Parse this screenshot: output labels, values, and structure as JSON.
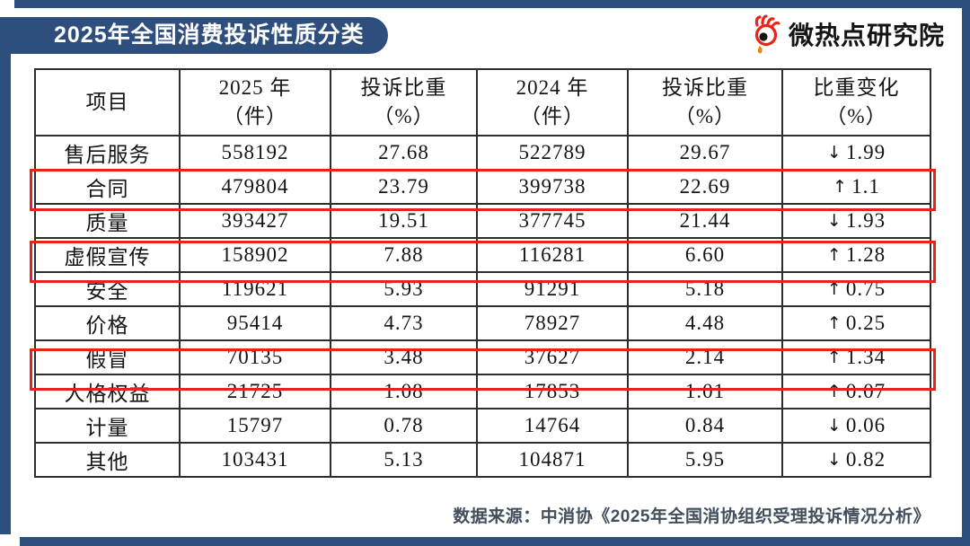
{
  "banner": {
    "title": "2025年全国消费投诉性质分类"
  },
  "logo": {
    "text": "微热点研究院",
    "icon": "weibo-eye-icon"
  },
  "colors": {
    "frame_blue": "#2e4f7d",
    "highlight_red": "#e8231a",
    "table_border": "#2d2d2d",
    "logo_red": "#e8231a",
    "logo_orange": "#f08300"
  },
  "footer": {
    "source": "数据来源：中消协《2025年全国消协组织受理投诉情况分析》"
  },
  "chart_data": {
    "type": "table",
    "title": "2025年全国消费投诉性质分类",
    "header": [
      {
        "l1": "项目",
        "l2": ""
      },
      {
        "l1": "2025 年",
        "l2": "（件）"
      },
      {
        "l1": "投诉比重",
        "l2": "（%）"
      },
      {
        "l1": "2024 年",
        "l2": "（件）"
      },
      {
        "l1": "投诉比重",
        "l2": "（%）"
      },
      {
        "l1": "比重变化",
        "l2": "（%）"
      }
    ],
    "rows": [
      {
        "item": "售后服务",
        "count_2025": "558192",
        "share_2025": "27.68",
        "count_2024": "522789",
        "share_2024": "29.67",
        "change_dir": "down",
        "change_value": "1.99",
        "highlight": false
      },
      {
        "item": "合同",
        "count_2025": "479804",
        "share_2025": "23.79",
        "count_2024": "399738",
        "share_2024": "22.69",
        "change_dir": "up",
        "change_value": "1.1",
        "highlight": true
      },
      {
        "item": "质量",
        "count_2025": "393427",
        "share_2025": "19.51",
        "count_2024": "377745",
        "share_2024": "21.44",
        "change_dir": "down",
        "change_value": "1.93",
        "highlight": false
      },
      {
        "item": "虚假宣传",
        "count_2025": "158902",
        "share_2025": "7.88",
        "count_2024": "116281",
        "share_2024": "6.60",
        "change_dir": "up",
        "change_value": "1.28",
        "highlight": true
      },
      {
        "item": "安全",
        "count_2025": "119621",
        "share_2025": "5.93",
        "count_2024": "91291",
        "share_2024": "5.18",
        "change_dir": "up",
        "change_value": "0.75",
        "highlight": false
      },
      {
        "item": "价格",
        "count_2025": "95414",
        "share_2025": "4.73",
        "count_2024": "78927",
        "share_2024": "4.48",
        "change_dir": "up",
        "change_value": "0.25",
        "highlight": false
      },
      {
        "item": "假冒",
        "count_2025": "70135",
        "share_2025": "3.48",
        "count_2024": "37627",
        "share_2024": "2.14",
        "change_dir": "up",
        "change_value": "1.34",
        "highlight": true
      },
      {
        "item": "人格权益",
        "count_2025": "21725",
        "share_2025": "1.08",
        "count_2024": "17853",
        "share_2024": "1.01",
        "change_dir": "up",
        "change_value": "0.07",
        "highlight": false
      },
      {
        "item": "计量",
        "count_2025": "15797",
        "share_2025": "0.78",
        "count_2024": "14764",
        "share_2024": "0.84",
        "change_dir": "down",
        "change_value": "0.06",
        "highlight": false
      },
      {
        "item": "其他",
        "count_2025": "103431",
        "share_2025": "5.13",
        "count_2024": "104871",
        "share_2024": "5.95",
        "change_dir": "down",
        "change_value": "0.82",
        "highlight": false
      }
    ],
    "highlighted_rows": [
      "合同",
      "虚假宣传",
      "假冒"
    ],
    "source": "数据来源：中消协《2025年全国消协组织受理投诉情况分析》"
  }
}
